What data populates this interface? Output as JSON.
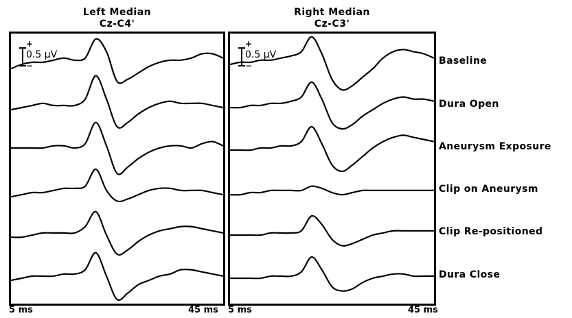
{
  "panels": [
    {
      "title_line1": "Left Median",
      "title_line2": "Cz-C4'",
      "scale_plus": "+",
      "scale_minus": "−",
      "scale_label": "0.5 μV",
      "x_start": "5 ms",
      "x_end": "45 ms"
    },
    {
      "title_line1": "Right Median",
      "title_line2": "Cz-C3'",
      "scale_plus": "+",
      "scale_minus": "−",
      "scale_label": "0.5 μV",
      "x_start": "5 ms",
      "x_end": "45 ms"
    }
  ],
  "conditions": [
    "Baseline",
    "Dura Open",
    "Aneurysm Exposure",
    "Clip on Aneurysm",
    "Clip Re-positioned",
    "Dura Close"
  ],
  "chart_data": {
    "type": "line",
    "x_unit": "ms",
    "xlim": [
      5,
      45
    ],
    "x": [
      5,
      7,
      9,
      11,
      13,
      15,
      17,
      19,
      21,
      23,
      25,
      27,
      29,
      31,
      33,
      35,
      37,
      39,
      41,
      43,
      45
    ],
    "amplitude_scale": "0.5 μV",
    "panels": [
      {
        "title": "Left Median Cz-C4'",
        "series": [
          {
            "name": "Baseline",
            "values": [
              -0.1,
              0,
              0.05,
              0.05,
              0.1,
              0.15,
              0.1,
              0.15,
              0.6,
              0.3,
              -0.4,
              -0.35,
              -0.2,
              -0.05,
              0.05,
              0.1,
              0.1,
              0.15,
              0.25,
              0.25,
              0.15
            ]
          },
          {
            "name": "Dura Open",
            "values": [
              -0.05,
              0,
              0.05,
              0.1,
              0.05,
              0.05,
              0.05,
              0.2,
              0.75,
              0.2,
              -0.45,
              -0.35,
              -0.15,
              0,
              0.1,
              0.15,
              0.1,
              0.1,
              0.1,
              0.05,
              0
            ]
          },
          {
            "name": "Aneurysm Exposure",
            "values": [
              0.05,
              0.05,
              0.05,
              0.05,
              0.1,
              0.1,
              0.05,
              0.15,
              0.65,
              0.1,
              -0.55,
              -0.4,
              -0.2,
              -0.05,
              0.05,
              0.1,
              0.1,
              0.05,
              0.15,
              0.2,
              0.1
            ]
          },
          {
            "name": "Clip on Aneurysm",
            "values": [
              -0.1,
              -0.05,
              0,
              0,
              0.05,
              0.1,
              0.1,
              0.15,
              0.55,
              0.05,
              -0.2,
              -0.15,
              -0.05,
              0.05,
              0.1,
              0.1,
              0.05,
              0.05,
              0.05,
              0,
              -0.05
            ]
          },
          {
            "name": "Clip Re-positioned",
            "values": [
              -0.05,
              -0.05,
              0,
              0.05,
              0.05,
              0.05,
              0.05,
              0.2,
              0.55,
              0,
              -0.45,
              -0.35,
              -0.15,
              0,
              0.1,
              0.15,
              0.2,
              0.2,
              0.15,
              0.1,
              0.05
            ]
          },
          {
            "name": "Dura Close",
            "values": [
              -0.05,
              0,
              0.05,
              0.05,
              0.05,
              0.1,
              0.1,
              0.2,
              0.6,
              0.05,
              -0.5,
              -0.35,
              -0.15,
              -0.05,
              0.05,
              0.1,
              0.2,
              0.2,
              0.15,
              0.1,
              0.05
            ]
          }
        ]
      },
      {
        "title": "Right Median Cz-C3'",
        "series": [
          {
            "name": "Baseline",
            "values": [
              0,
              0.05,
              0.05,
              0.1,
              0.1,
              0.15,
              0.2,
              0.3,
              0.65,
              0.25,
              -0.35,
              -0.6,
              -0.5,
              -0.3,
              -0.1,
              0.15,
              0.3,
              0.35,
              0.3,
              0.25,
              0.15
            ]
          },
          {
            "name": "Dura Open",
            "values": [
              0,
              0,
              0.05,
              0.05,
              0.1,
              0.1,
              0.15,
              0.25,
              0.6,
              0.2,
              -0.35,
              -0.5,
              -0.4,
              -0.2,
              -0.05,
              0.1,
              0.2,
              0.25,
              0.2,
              0.2,
              0.15
            ]
          },
          {
            "name": "Aneurysm Exposure",
            "values": [
              0,
              0,
              0,
              0.05,
              0.05,
              0.1,
              0.1,
              0.2,
              0.55,
              0.15,
              -0.35,
              -0.5,
              -0.35,
              -0.15,
              0.05,
              0.2,
              0.3,
              0.35,
              0.3,
              0.25,
              0.2
            ]
          },
          {
            "name": "Clip on Aneurysm",
            "values": [
              -0.05,
              -0.05,
              0,
              0,
              0.05,
              0.05,
              0.05,
              0.05,
              0.15,
              0.1,
              0,
              -0.05,
              0,
              0.05,
              0.05,
              0.05,
              0.05,
              0.05,
              0.05,
              0.05,
              0.05
            ]
          },
          {
            "name": "Clip Re-positioned",
            "values": [
              0,
              0,
              0,
              0,
              0.05,
              0.05,
              0.05,
              0.1,
              0.45,
              0.25,
              -0.1,
              -0.25,
              -0.2,
              -0.1,
              0,
              0.05,
              0.1,
              0.1,
              0.1,
              0.1,
              0.1
            ]
          },
          {
            "name": "Dura Close",
            "values": [
              0,
              0,
              0,
              0,
              0.05,
              0.05,
              0.05,
              0.15,
              0.5,
              0.2,
              -0.2,
              -0.3,
              -0.25,
              -0.1,
              0,
              0.05,
              0.1,
              0.1,
              0.05,
              0.05,
              0.05
            ]
          }
        ]
      }
    ]
  }
}
